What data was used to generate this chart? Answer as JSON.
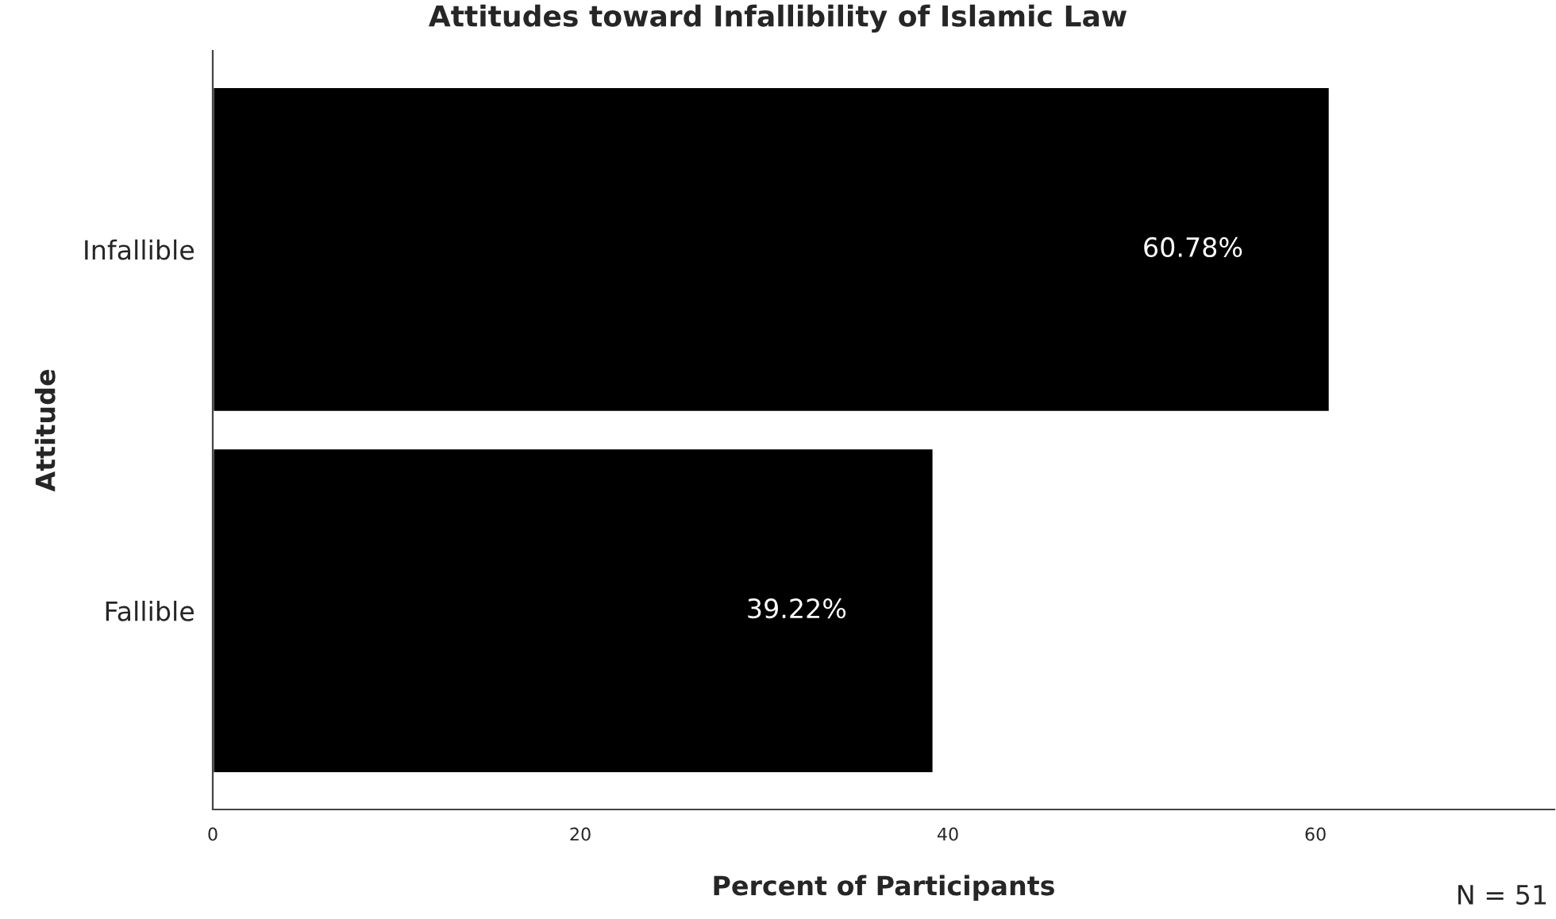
{
  "chart_data": {
    "type": "bar",
    "orientation": "horizontal",
    "title": "Attitudes toward Infallibility of Islamic Law",
    "xlabel": "Percent of Participants",
    "ylabel": "Attitude",
    "categories": [
      "Infallible",
      "Fallible"
    ],
    "values": [
      60.78,
      39.22
    ],
    "color": "#000000",
    "value_labels": [
      "60.78%",
      "39.22%"
    ],
    "xlim": [
      0,
      73
    ],
    "xticks": [
      0,
      20,
      40,
      60
    ],
    "grid": false,
    "legend": false,
    "annotations": [
      "N = 51"
    ]
  }
}
